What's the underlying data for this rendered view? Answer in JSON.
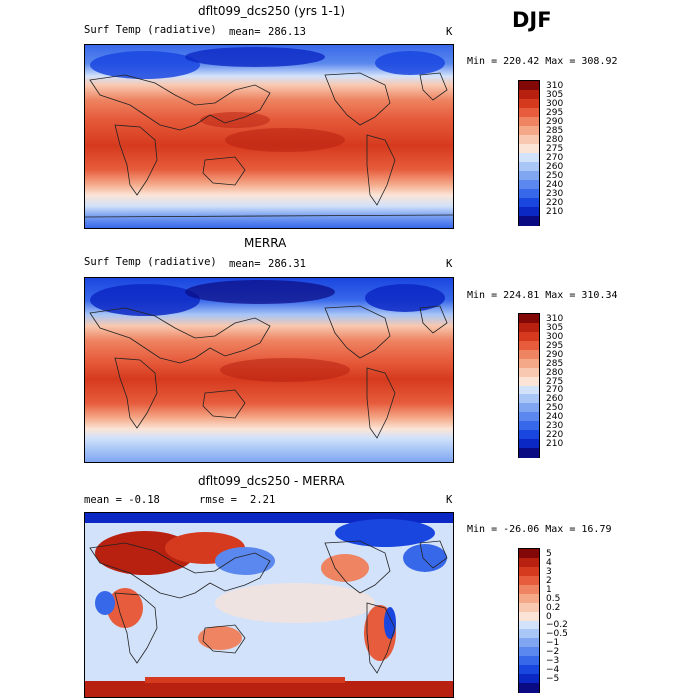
{
  "season": "DJF",
  "panels": [
    {
      "title": "dflt099_dcs250 (yrs 1-1)",
      "left_label": "Surf Temp (radiative)",
      "mean_label": "mean=",
      "mean_value": "286.13",
      "units": "K",
      "minmax": "Min = 220.42 Max = 308.92"
    },
    {
      "title": "MERRA",
      "left_label": "Surf Temp (radiative)",
      "mean_label": "mean=",
      "mean_value": "286.31",
      "units": "K",
      "minmax": "Min = 224.81 Max = 310.34"
    },
    {
      "title": "dflt099_dcs250 - MERRA",
      "left_label": "mean =   -0.18",
      "mean_label": "rmse =",
      "mean_value": "2.21",
      "units": "K",
      "minmax": "Min = -26.06 Max =  16.79"
    }
  ],
  "colors": {
    "abs_scale": [
      "#0a0a82",
      "#0c28c4",
      "#1a46e0",
      "#3868ea",
      "#5a88ee",
      "#80a6f2",
      "#a8c6f6",
      "#d2e2fa",
      "#fbe4d6",
      "#f8c8b0",
      "#f4a888",
      "#ee8462",
      "#e65c3c",
      "#d63a1e",
      "#b82010",
      "#820808"
    ],
    "diff_scale": [
      "#0a0a82",
      "#0c28c4",
      "#1a46e0",
      "#3868ea",
      "#5a88ee",
      "#80a6f2",
      "#a8c6f6",
      "#d2e2fa",
      "#fbe4d6",
      "#f8c8b0",
      "#f4a888",
      "#ee8462",
      "#e65c3c",
      "#d63a1e",
      "#b82010",
      "#820808"
    ]
  },
  "chart_data": [
    {
      "type": "heatmap",
      "title": "dflt099_dcs250 (yrs 1-1)",
      "field": "Surf Temp (radiative)",
      "units": "K",
      "mean": 286.13,
      "min": 220.42,
      "max": 308.92,
      "colorbar_levels": [
        "310",
        "305",
        "300",
        "295",
        "290",
        "285",
        "280",
        "275",
        "270",
        "260",
        "250",
        "240",
        "230",
        "220",
        "210"
      ],
      "grid": false
    },
    {
      "type": "heatmap",
      "title": "MERRA",
      "field": "Surf Temp (radiative)",
      "units": "K",
      "mean": 286.31,
      "min": 224.81,
      "max": 310.34,
      "colorbar_levels": [
        "310",
        "305",
        "300",
        "295",
        "290",
        "285",
        "280",
        "275",
        "270",
        "260",
        "250",
        "240",
        "230",
        "220",
        "210"
      ],
      "grid": false
    },
    {
      "type": "heatmap",
      "title": "dflt099_dcs250 - MERRA",
      "units": "K",
      "mean": -0.18,
      "rmse": 2.21,
      "min": -26.06,
      "max": 16.79,
      "colorbar_levels": [
        "5",
        "4",
        "3",
        "2",
        "1",
        "0.5",
        "0.2",
        "0",
        "−0.2",
        "−0.5",
        "−1",
        "−2",
        "−3",
        "−4",
        "−5"
      ],
      "grid": false
    }
  ]
}
